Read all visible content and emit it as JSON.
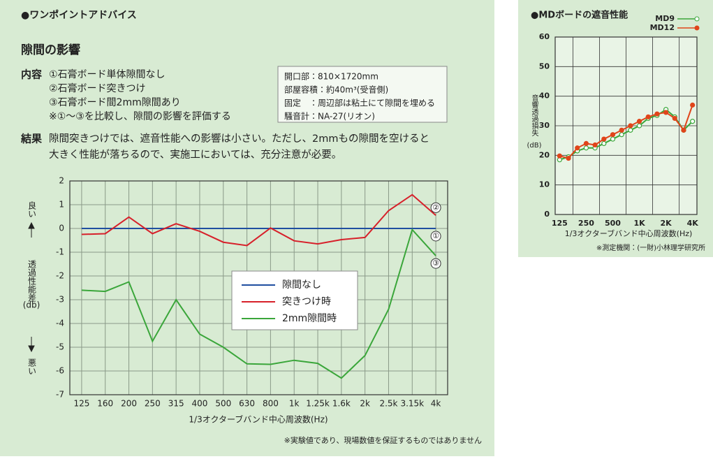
{
  "left": {
    "heading": "●ワンポイントアドバイス",
    "title": "隙間の影響",
    "content_label": "内容",
    "content_items": [
      "①石膏ボード単体隙間なし",
      "②石膏ボード突きつけ",
      "③石膏ボード間2mm隙間あり",
      "※①～③を比較し、隙間の影響を評価する"
    ],
    "info": [
      "開口部：810×1720mm",
      "部屋容積：約40m³(受音側)",
      "固定　：周辺部は粘土にて隙間を埋める",
      "騒音計：NA-27(リオン)"
    ],
    "result_label": "結果",
    "result_text": [
      "隙間突きつけでは、遮音性能への影響は小さい。ただし、2mmもの隙間を空けると",
      "大きく性能が落ちるので、実施工においては、充分注意が必要。"
    ],
    "note": "※実験値であり、現場数値を保証するものではありません"
  },
  "right": {
    "heading": "●MDボードの遮音性能",
    "note": "※測定機関：(一財)小林理学研究所"
  },
  "chart_data": [
    {
      "type": "line",
      "x_label": "1/3オクターブバンド中心周波数(Hz)",
      "y_label": "透過性能差",
      "y_unit": "(db)",
      "better": "良い",
      "worse": "悪い",
      "categories": [
        "125",
        "160",
        "200",
        "250",
        "315",
        "400",
        "500",
        "630",
        "800",
        "1k",
        "1.25k",
        "1.6k",
        "2k",
        "2.5k",
        "3.15k",
        "4k"
      ],
      "ylim": [
        -7,
        2
      ],
      "yticks": [
        -7,
        -6,
        -5,
        -4,
        -3,
        -2,
        -1,
        0,
        1,
        2
      ],
      "grid": true,
      "series": [
        {
          "name": "隙間なし",
          "color": "#1f4fa0",
          "end_label": "①",
          "values": [
            0,
            0,
            0,
            0,
            0,
            0,
            0,
            0,
            0,
            0,
            0,
            0,
            0,
            0,
            0,
            0
          ]
        },
        {
          "name": "突きつけ時",
          "color": "#d7202a",
          "end_label": "②",
          "values": [
            -0.25,
            -0.22,
            0.48,
            -0.22,
            0.2,
            -0.12,
            -0.58,
            -0.72,
            0.02,
            -0.52,
            -0.65,
            -0.47,
            -0.38,
            0.75,
            1.42,
            0.55
          ]
        },
        {
          "name": "2mm隙間時",
          "color": "#3aa63a",
          "end_label": "③",
          "values": [
            -2.6,
            -2.65,
            -2.25,
            -4.75,
            -3.0,
            -4.45,
            -5.0,
            -5.7,
            -5.72,
            -5.55,
            -5.68,
            -6.3,
            -5.35,
            -3.4,
            -0.05,
            -1.15
          ]
        }
      ]
    },
    {
      "type": "line",
      "x_label": "1/3オクターブバンド中心周波数(Hz)",
      "y_label": "音響透過損失",
      "y_unit": "(dB)",
      "categories": [
        "125",
        null,
        null,
        "250",
        null,
        null,
        "500",
        null,
        null,
        "1K",
        null,
        null,
        "2K",
        null,
        null,
        "4K"
      ],
      "ylim": [
        0,
        60
      ],
      "yticks": [
        0,
        10,
        20,
        30,
        40,
        50,
        60
      ],
      "grid": true,
      "series": [
        {
          "name": "MD9",
          "color": "#3aa63a",
          "marker": "open",
          "values": [
            18.5,
            19.5,
            21.5,
            22.5,
            22.5,
            24,
            25.5,
            27,
            28.5,
            30,
            32.5,
            33.5,
            35.5,
            33,
            28.5,
            31.5
          ]
        },
        {
          "name": "MD12",
          "color": "#e0451a",
          "marker": "filled",
          "values": [
            19.8,
            19,
            22.5,
            24,
            23.5,
            25.5,
            27,
            28.5,
            30,
            31.5,
            33,
            34,
            34.5,
            32.5,
            28.5,
            37
          ]
        }
      ]
    }
  ]
}
